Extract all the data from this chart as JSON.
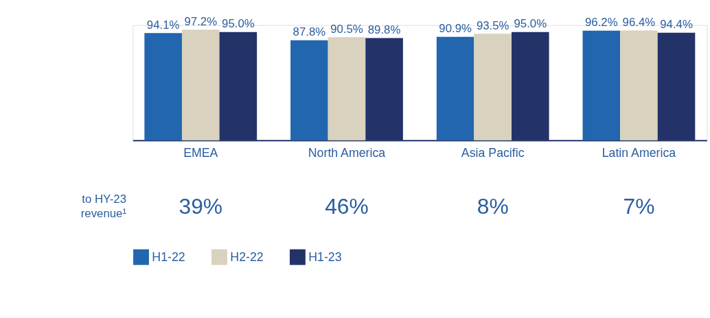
{
  "chart_data": {
    "type": "bar",
    "categories": [
      "EMEA",
      "North America",
      "Asia Pacific",
      "Latin America"
    ],
    "series": [
      {
        "name": "H1-22",
        "color": "#2166ae",
        "values": [
          94.1,
          87.8,
          90.9,
          96.2
        ],
        "value_labels": [
          "94.1%",
          "87.8%",
          "90.9%",
          "96.2%"
        ]
      },
      {
        "name": "H2-22",
        "color": "#d9d2bf",
        "values": [
          97.2,
          90.5,
          93.5,
          96.4
        ],
        "value_labels": [
          "97.2%",
          "90.5%",
          "93.5%",
          "96.4%"
        ]
      },
      {
        "name": "H1-23",
        "color": "#23336a",
        "values": [
          95.0,
          89.8,
          95.0,
          94.4
        ],
        "value_labels": [
          "95.0%",
          "89.8%",
          "95.0%",
          "94.4%"
        ]
      }
    ],
    "legend": "bottom",
    "grid": false,
    "annotations": [
      "to HY-23 revenue¹",
      "39%",
      "46%",
      "8%",
      "7%"
    ]
  }
}
